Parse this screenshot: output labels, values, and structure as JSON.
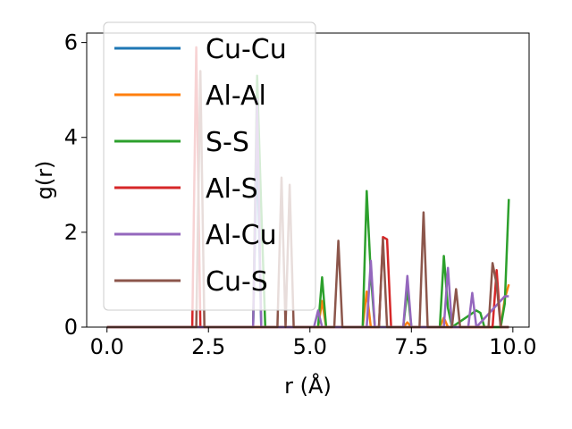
{
  "chart_data": {
    "type": "line",
    "xlabel": "r (Å)",
    "ylabel": "g(r)",
    "xlim": [
      -0.5,
      10.4
    ],
    "ylim": [
      0,
      6.2
    ],
    "xticks": [
      0.0,
      2.5,
      5.0,
      7.5,
      10.0
    ],
    "xtick_labels": [
      "0.0",
      "2.5",
      "5.0",
      "7.5",
      "10.0"
    ],
    "yticks": [
      0,
      2,
      4,
      6
    ],
    "ytick_labels": [
      "0",
      "2",
      "4",
      "6"
    ],
    "grid": false,
    "legend_position": "upper-left",
    "series": [
      {
        "name": "Cu-Cu",
        "color": "#1f77b4",
        "x": [
          0,
          3.6,
          3.7,
          3.8,
          3.9,
          9.9
        ],
        "y": [
          0,
          0,
          3.8,
          0,
          0,
          0
        ]
      },
      {
        "name": "Al-Al",
        "color": "#ff7f0e",
        "x": [
          0,
          5.2,
          5.3,
          5.4,
          6.3,
          6.4,
          6.5,
          7.3,
          7.4,
          7.5,
          8.2,
          8.3,
          8.4,
          9.7,
          9.8,
          9.9
        ],
        "y": [
          0,
          0,
          0.55,
          0,
          0,
          0.75,
          0,
          0,
          0.1,
          0,
          0,
          0.2,
          0,
          0,
          0.6,
          0.9
        ]
      },
      {
        "name": "S-S",
        "color": "#2ca02c",
        "x": [
          0,
          3.6,
          3.7,
          3.8,
          3.9,
          5.2,
          5.3,
          5.4,
          6.3,
          6.4,
          6.5,
          6.6,
          7.3,
          7.4,
          7.5,
          8.2,
          8.3,
          8.4,
          8.5,
          9.1,
          9.2,
          9.3,
          9.7,
          9.8,
          9.9
        ],
        "y": [
          0,
          0,
          5.3,
          2.5,
          0,
          0,
          1.05,
          0,
          0,
          2.87,
          1.1,
          0,
          0,
          0.8,
          0,
          0,
          1.5,
          0.4,
          0,
          0.35,
          0.3,
          0,
          0,
          0.5,
          2.7
        ]
      },
      {
        "name": "Al-S",
        "color": "#d62728",
        "x": [
          0,
          2.1,
          2.2,
          2.3,
          2.4,
          6.7,
          6.8,
          6.9,
          7.0,
          9.5,
          9.6,
          9.7,
          9.9
        ],
        "y": [
          0,
          0,
          5.9,
          0,
          0,
          0,
          1.9,
          1.85,
          0,
          0,
          1.2,
          0,
          0
        ]
      },
      {
        "name": "Al-Cu",
        "color": "#9467bd",
        "x": [
          0,
          3.6,
          3.7,
          3.8,
          5.1,
          5.2,
          5.3,
          6.4,
          6.5,
          6.6,
          7.3,
          7.4,
          7.5,
          8.3,
          8.4,
          8.5,
          8.9,
          9.0,
          9.1,
          9.8,
          9.9
        ],
        "y": [
          0,
          0,
          4.8,
          0,
          0,
          0.35,
          0,
          0,
          1.4,
          0,
          0,
          1.08,
          0,
          0,
          1.25,
          0,
          0,
          0.72,
          0,
          0.65,
          0.65
        ]
      },
      {
        "name": "Cu-S",
        "color": "#8c564b",
        "x": [
          0,
          2.2,
          2.3,
          2.4,
          4.2,
          4.3,
          4.4,
          4.5,
          4.6,
          5.6,
          5.7,
          5.8,
          6.7,
          6.8,
          6.9,
          7.0,
          7.7,
          7.8,
          7.9,
          8.5,
          8.6,
          8.7,
          9.4,
          9.5,
          9.6,
          9.7,
          9.9
        ],
        "y": [
          0,
          0,
          5.4,
          0,
          0,
          3.15,
          0,
          3.0,
          0,
          0,
          1.82,
          0,
          0,
          1.85,
          0,
          0,
          0,
          2.42,
          0,
          0,
          0.8,
          0,
          0,
          1.35,
          0.9,
          0,
          0
        ]
      }
    ]
  }
}
